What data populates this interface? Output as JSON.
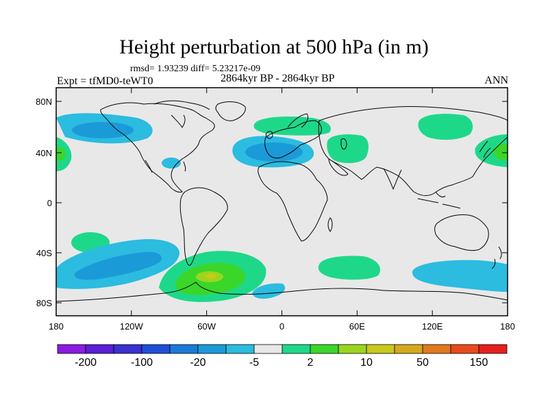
{
  "title": "Height perturbation at 500 hPa (in m)",
  "stats": "rmsd= 1.93239 diff= 5.23217e-09",
  "left_string": "Expt = tfMD0-teWT0",
  "center_string": "2864kyr BP - 2864kyr BP",
  "right_string": "ANN",
  "lat_ticks": [
    "80N",
    "40N",
    "0",
    "40S",
    "80S"
  ],
  "lon_ticks": [
    "180",
    "120W",
    "60W",
    "0",
    "60E",
    "120E",
    "180"
  ],
  "colorbar": {
    "colors": [
      "#8a1be0",
      "#5a1fd6",
      "#3a2fd0",
      "#1f4fd8",
      "#1b7ad8",
      "#1b9ad8",
      "#2bbce0",
      "#e8e8e8",
      "#1ed88a",
      "#3bd62a",
      "#9ad61e",
      "#c8c81e",
      "#d6a81e",
      "#e07a1e",
      "#e84a1e",
      "#e81e1e"
    ],
    "labels": [
      "-200",
      "-100",
      "-20",
      "-5",
      "2",
      "10",
      "50",
      "150"
    ]
  },
  "map_colors": {
    "background": "#e8e8e8",
    "light_blue": "#2bbce0",
    "mid_blue": "#1b9ad8",
    "dark_blue": "#1b7ad8",
    "light_green": "#1ed88a",
    "green": "#3bd62a",
    "yellow_green": "#9ad61e",
    "yellow": "#c8c81e"
  }
}
